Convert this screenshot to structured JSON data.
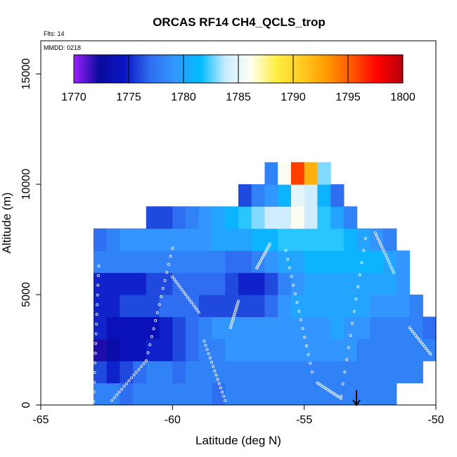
{
  "chart_data": {
    "type": "heatmap",
    "title": "ORCAS RF14 CH4_QCLS_trop",
    "annotation_flights": "Flts: 14",
    "annotation_date": "MMDD: 0218",
    "xlabel": "Latitude (deg N)",
    "ylabel": "Altitude (m)",
    "xlim": [
      -65,
      -50
    ],
    "ylim": [
      0,
      16500
    ],
    "x_ticks": [
      -65,
      -60,
      -55,
      -50
    ],
    "x_tick_labels": [
      "-65",
      "-60",
      "-55",
      "-50"
    ],
    "y_ticks": [
      0,
      5000,
      10000,
      15000
    ],
    "y_tick_labels": [
      "0",
      "5000",
      "10000",
      "15000"
    ],
    "colorbar": {
      "min": 1770,
      "max": 1800,
      "ticks": [
        1770,
        1775,
        1780,
        1785,
        1790,
        1795,
        1800
      ],
      "tick_labels": [
        "1770",
        "1775",
        "1780",
        "1785",
        "1790",
        "1795",
        "1800"
      ],
      "stops": [
        "#9d20ff",
        "#0a0a9c",
        "#0a14c4",
        "#2f6cf0",
        "#3399ff",
        "#00bbff",
        "#ccecff",
        "#fffff0",
        "#ffee44",
        "#ffcc22",
        "#ff9900",
        "#ff5500",
        "#ff0000",
        "#b3000c"
      ]
    },
    "data_note": "Approximate curtain of CH4 (ppb) binned by latitude and altitude",
    "lat_bins": [
      -62.75,
      -62.25,
      -61.75,
      -61.25,
      -60.75,
      -60.25,
      -59.75,
      -59.25,
      -58.75,
      -58.25,
      -57.75,
      -57.25,
      -56.75,
      -56.25,
      -55.75,
      -55.25,
      -54.75,
      -54.25,
      -53.75,
      -53.25,
      -52.75,
      -52.25,
      -51.75,
      -51.25,
      -50.75,
      -50.25
    ],
    "alt_bins": [
      500,
      1500,
      2500,
      3500,
      4500,
      5500,
      6500,
      7500,
      8500,
      9500,
      10500
    ],
    "grid": [
      [
        1778,
        1778,
        1777,
        1778,
        1778,
        1778,
        1778,
        1778,
        1778,
        1777,
        1778,
        1778,
        1778,
        1778,
        1778,
        1778,
        1778,
        1778,
        1778,
        1778,
        1778,
        1778,
        1778,
        null,
        null,
        null
      ],
      [
        1776,
        1775,
        1776,
        1777,
        1778,
        1778,
        1777,
        1778,
        1778,
        1778,
        1778,
        1778,
        1778,
        1778,
        1778,
        1778,
        1778,
        1778,
        1778,
        1778,
        1778,
        1778,
        1778,
        1778,
        1778,
        null
      ],
      [
        1772,
        1773,
        1774,
        1774,
        1775,
        1775,
        1776,
        1777,
        1778,
        1778,
        1779,
        1779,
        1779,
        1779,
        1779,
        1779,
        1779,
        1779,
        1779,
        1779,
        1778,
        1778,
        1778,
        1778,
        1778,
        1778
      ],
      [
        1775,
        1774,
        1774,
        1774,
        1774,
        1775,
        1776,
        1777,
        1778,
        1779,
        1779,
        1779,
        1779,
        1779,
        1779,
        1779,
        1779,
        1779,
        1780,
        1779,
        1779,
        1778,
        1778,
        1778,
        1778,
        1777
      ],
      [
        1775,
        1775,
        1776,
        1776,
        1776,
        1777,
        1777,
        1777,
        1776,
        1776,
        1776,
        1776,
        1776,
        1777,
        1779,
        1780,
        1780,
        1780,
        1780,
        1780,
        1780,
        1779,
        1779,
        1779,
        1778,
        null
      ],
      [
        1775,
        1775,
        1775,
        1775,
        1776,
        1776,
        1777,
        1777,
        1777,
        1777,
        1776,
        1775,
        1775,
        1776,
        1778,
        1779,
        1780,
        1780,
        1780,
        1780,
        1780,
        1780,
        1780,
        1779,
        null,
        null
      ],
      [
        1778,
        1778,
        1778,
        1778,
        1778,
        1778,
        1778,
        1778,
        1778,
        1778,
        1777,
        1777,
        1778,
        1779,
        1780,
        1780,
        1781,
        1781,
        1781,
        1781,
        1781,
        1781,
        1780,
        1779,
        null,
        null
      ],
      [
        1777,
        1778,
        1779,
        1779,
        1779,
        1779,
        1779,
        1779,
        1779,
        1780,
        1780,
        1780,
        1781,
        1781,
        1782,
        1782,
        1782,
        1782,
        1782,
        1781,
        1780,
        1779,
        1778,
        null,
        null,
        null
      ],
      [
        null,
        null,
        null,
        null,
        1776,
        1776,
        1777,
        1778,
        1779,
        1780,
        1781,
        1782,
        1783,
        1784,
        1784,
        1786,
        1784,
        1782,
        1780,
        1778,
        null,
        null,
        null,
        null,
        null,
        null
      ],
      [
        null,
        null,
        null,
        null,
        null,
        null,
        null,
        null,
        null,
        null,
        null,
        1776,
        1778,
        1779,
        1781,
        1785,
        1784,
        1781,
        1777,
        null,
        null,
        null,
        null,
        null,
        null,
        null
      ],
      [
        null,
        null,
        null,
        null,
        null,
        null,
        null,
        null,
        null,
        null,
        null,
        null,
        null,
        1778,
        1786,
        1796,
        1792,
        1783,
        null,
        null,
        null,
        null,
        null,
        null,
        null,
        null
      ]
    ]
  }
}
